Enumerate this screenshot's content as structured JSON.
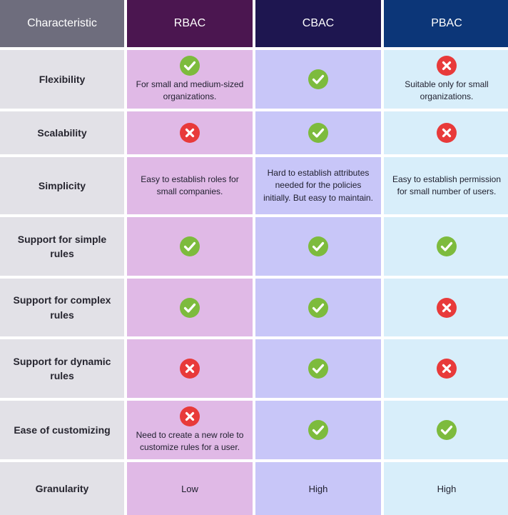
{
  "header": {
    "characteristic": "Characteristic",
    "rbac": "RBAC",
    "cbac": "CBAC",
    "pbac": "PBAC"
  },
  "rows": [
    {
      "label": "Flexibility",
      "rbac": {
        "icon": "check-icon",
        "note": "For small and medium-sized organizations."
      },
      "cbac": {
        "icon": "check-icon"
      },
      "pbac": {
        "icon": "cross-icon",
        "note": "Suitable only for small organizations."
      }
    },
    {
      "label": "Scalability",
      "rbac": {
        "icon": "cross-icon"
      },
      "cbac": {
        "icon": "check-icon"
      },
      "pbac": {
        "icon": "cross-icon"
      }
    },
    {
      "label": "Simplicity",
      "rbac": {
        "note": "Easy to establish roles for small companies."
      },
      "cbac": {
        "note": "Hard to establish attributes needed for the policies initially. But easy to maintain."
      },
      "pbac": {
        "note": "Easy to establish permission for small number of users."
      }
    },
    {
      "label": "Support for simple rules",
      "rbac": {
        "icon": "check-icon"
      },
      "cbac": {
        "icon": "check-icon"
      },
      "pbac": {
        "icon": "check-icon"
      }
    },
    {
      "label": "Support for complex rules",
      "rbac": {
        "icon": "check-icon"
      },
      "cbac": {
        "icon": "check-icon"
      },
      "pbac": {
        "icon": "cross-icon"
      }
    },
    {
      "label": "Support for dynamic rules",
      "rbac": {
        "icon": "cross-icon"
      },
      "cbac": {
        "icon": "check-icon"
      },
      "pbac": {
        "icon": "cross-icon"
      }
    },
    {
      "label": "Ease of customizing",
      "rbac": {
        "icon": "cross-icon",
        "note": "Need to create a new role to customize rules for a user."
      },
      "cbac": {
        "icon": "check-icon"
      },
      "pbac": {
        "icon": "check-icon"
      }
    },
    {
      "label": "Granularity",
      "rbac": {
        "value": "Low"
      },
      "cbac": {
        "value": "High"
      },
      "pbac": {
        "value": "High"
      }
    }
  ],
  "colors": {
    "check": "#7dbb3d",
    "cross": "#e83a3a",
    "header_characteristic": "#6e6d7d",
    "header_rbac": "#4b1650",
    "header_cbac": "#1e1650",
    "header_pbac": "#0c3678",
    "rbac_fill": "#e0b9e6",
    "cbac_fill": "#c8c6f8",
    "pbac_fill": "#d8eefa",
    "label_fill": "#e2e1e7"
  }
}
